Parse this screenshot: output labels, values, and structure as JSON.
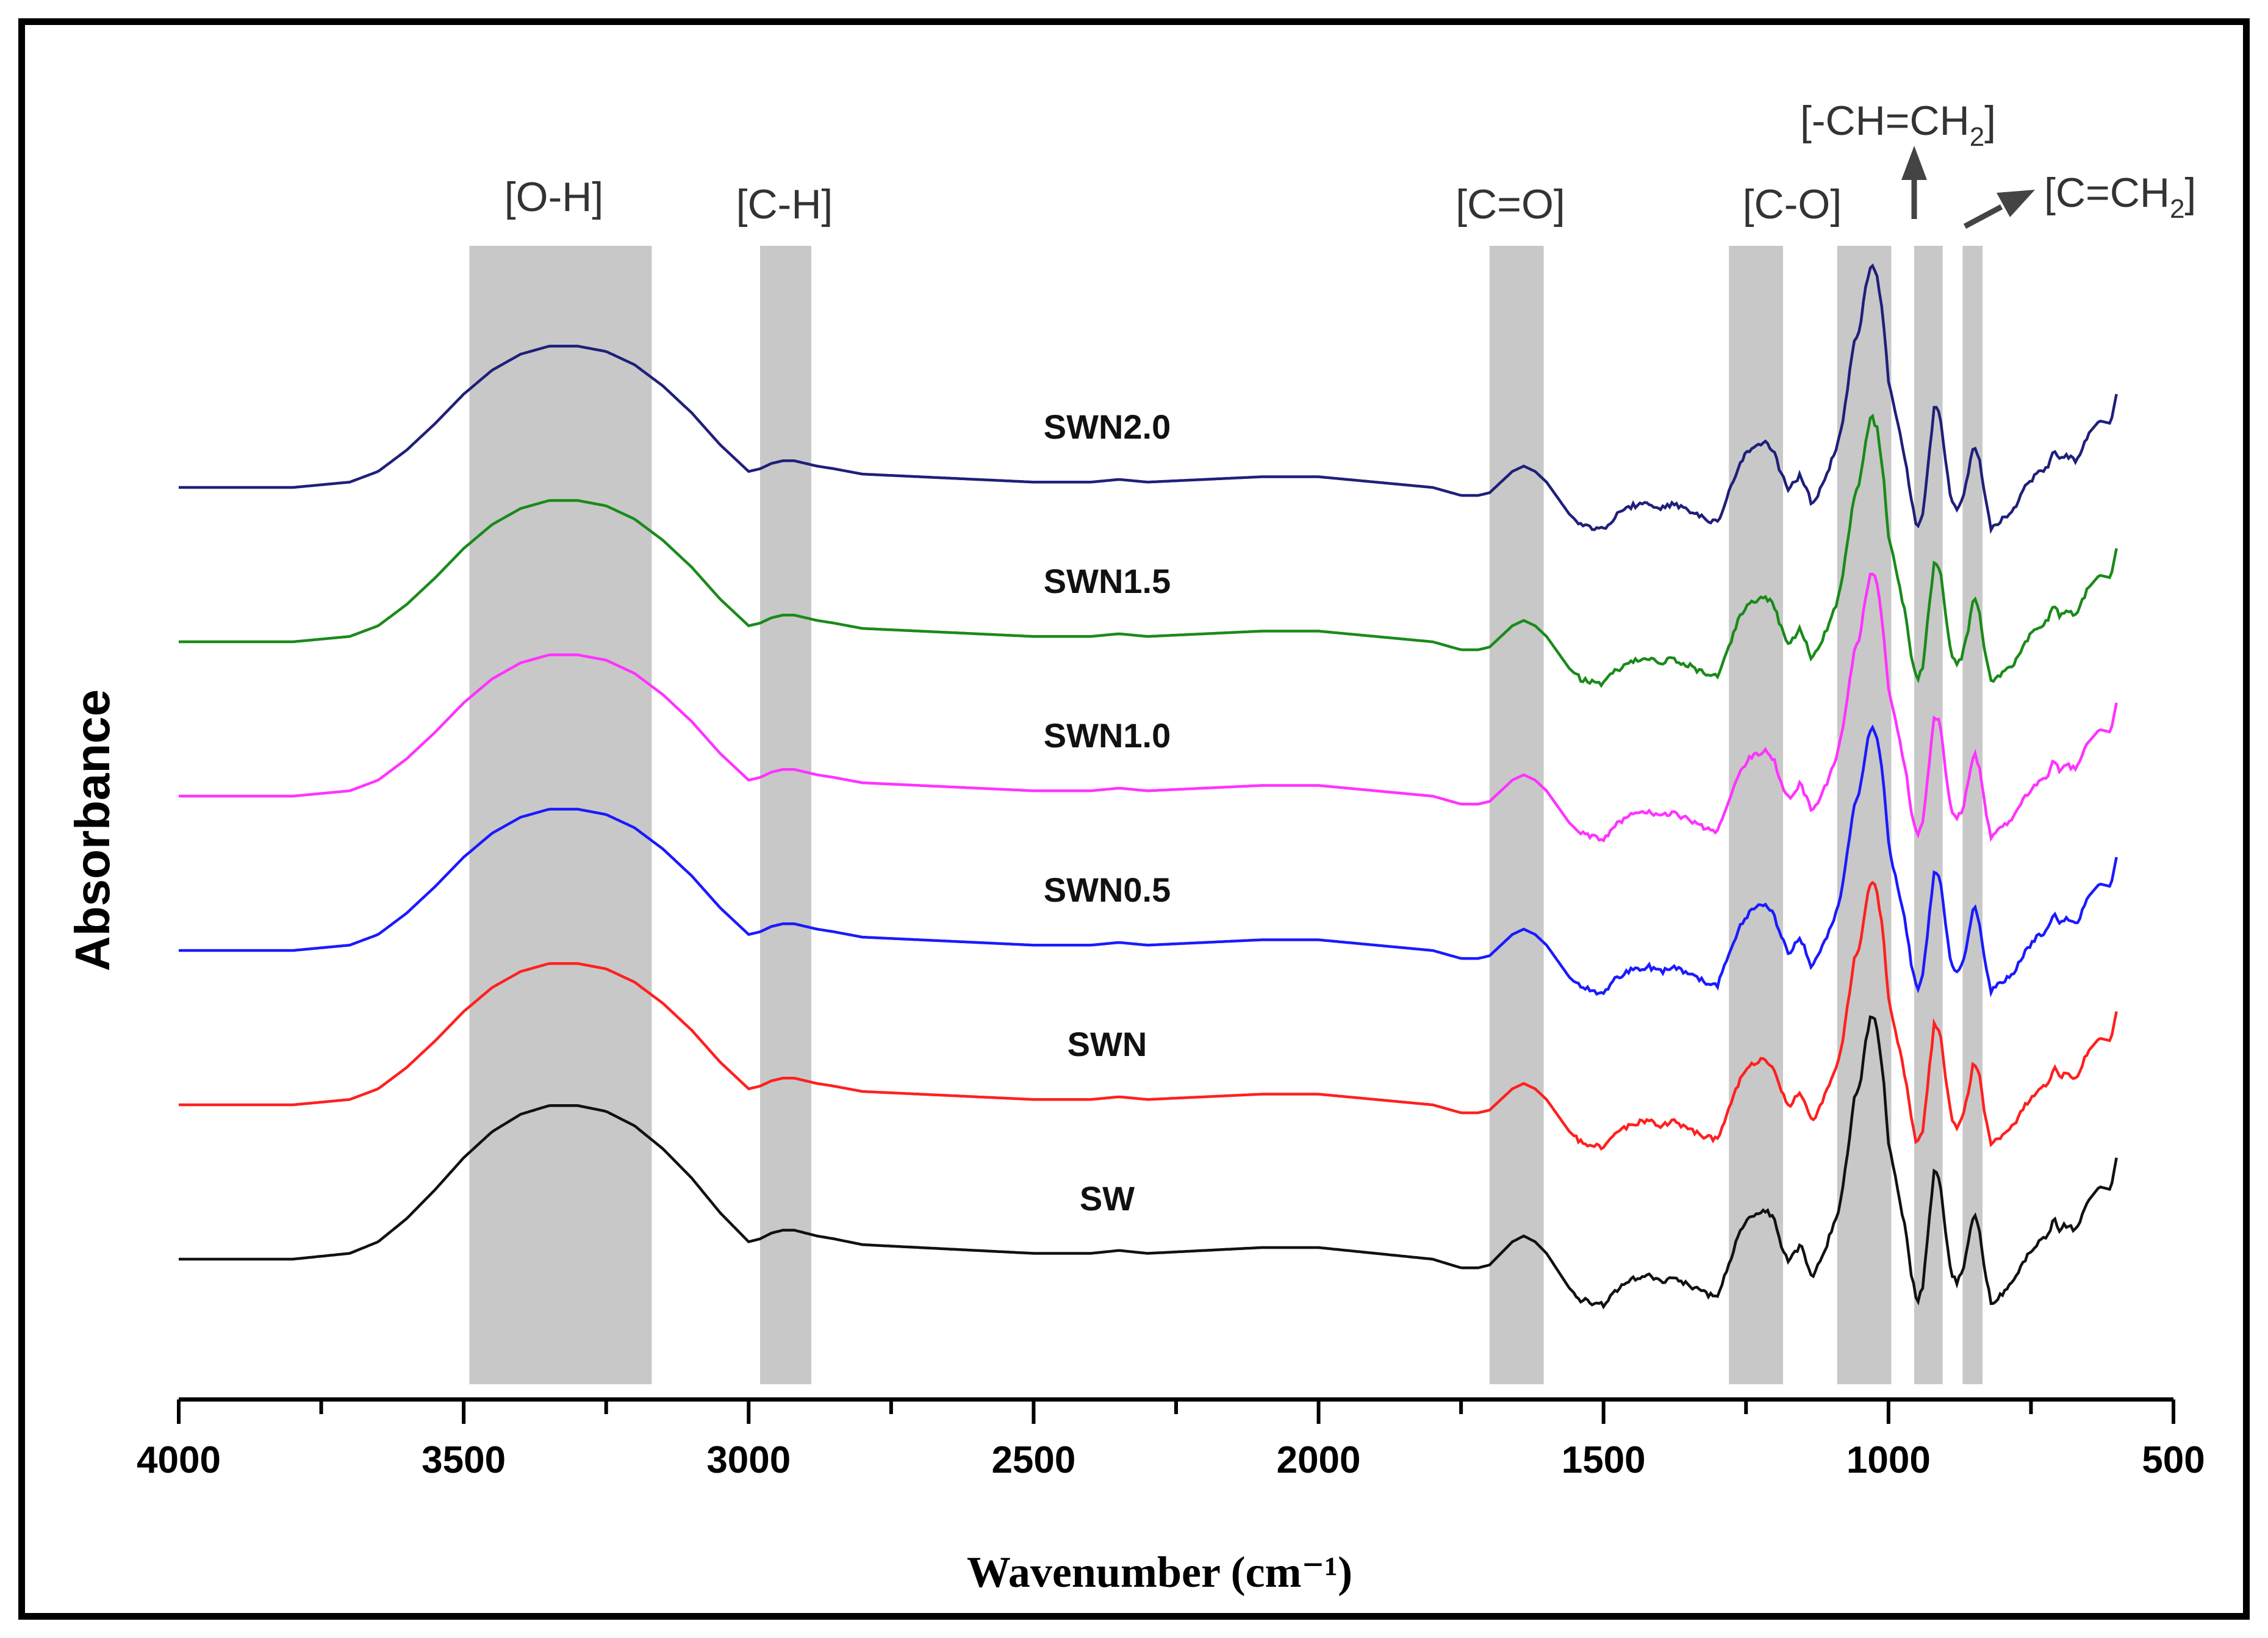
{
  "chart_data": {
    "type": "line",
    "title": "",
    "xlabel": "Wavenumber (cm⁻¹)",
    "ylabel": "Absorbance",
    "xlim": [
      4000,
      500
    ],
    "x_reversed": true,
    "xticks": [
      4000,
      3500,
      3000,
      2500,
      2000,
      1500,
      1000,
      500
    ],
    "grid": false,
    "legend": "none",
    "bands": [
      {
        "name": "O-H",
        "label": "[O-H]",
        "range": [
          3490,
          3170
        ]
      },
      {
        "name": "C-H",
        "label": "[C-H]",
        "range": [
          2980,
          2890
        ]
      },
      {
        "name": "C=O",
        "label": "[C=O]",
        "range": [
          1700,
          1605
        ]
      },
      {
        "name": "C-O",
        "label": "[C-O]",
        "range": [
          1280,
          1185
        ]
      },
      {
        "name": "C-O-2",
        "label": "",
        "range": [
          1090,
          995
        ]
      },
      {
        "name": "CH=CH2",
        "label_main": "[-CH=CH",
        "label_sub": "2",
        "label_end": "]",
        "range": [
          955,
          905
        ]
      },
      {
        "name": "C=CH2",
        "label_main": "[C=CH",
        "label_sub": "2",
        "label_end": "]",
        "range": [
          870,
          835
        ]
      }
    ],
    "series": [
      {
        "name": "SWN2.0",
        "color": "#1f1f7a",
        "offset": 5
      },
      {
        "name": "SWN1.5",
        "color": "#1a8a1a",
        "offset": 4
      },
      {
        "name": "SWN1.0",
        "color": "#ff33ff",
        "offset": 3
      },
      {
        "name": "SWN0.5",
        "color": "#1a1aff",
        "offset": 2
      },
      {
        "name": "SWN",
        "color": "#ff2020",
        "offset": 1
      },
      {
        "name": "SW",
        "color": "#111111",
        "offset": 0
      }
    ],
    "profile": {
      "description": "FTIR absorbance profile shared by all series; values are relative absorbance vs wavenumber (cm-1)",
      "x": [
        4000,
        3900,
        3800,
        3700,
        3650,
        3600,
        3550,
        3500,
        3450,
        3400,
        3350,
        3300,
        3250,
        3200,
        3150,
        3100,
        3050,
        3000,
        2980,
        2960,
        2940,
        2920,
        2900,
        2880,
        2850,
        2800,
        2700,
        2600,
        2500,
        2400,
        2350,
        2300,
        2200,
        2100,
        2050,
        2000,
        1950,
        1900,
        1850,
        1800,
        1750,
        1720,
        1700,
        1680,
        1660,
        1640,
        1620,
        1600,
        1580,
        1560,
        1540,
        1500,
        1480,
        1450,
        1420,
        1400,
        1380,
        1370,
        1350,
        1320,
        1300,
        1280,
        1260,
        1240,
        1230,
        1220,
        1210,
        1200,
        1190,
        1175,
        1165,
        1155,
        1145,
        1135,
        1125,
        1110,
        1100,
        1090,
        1080,
        1070,
        1060,
        1050,
        1040,
        1030,
        1020,
        1010,
        1000,
        990,
        980,
        970,
        960,
        950,
        940,
        930,
        920,
        910,
        900,
        890,
        880,
        870,
        860,
        850,
        840,
        830,
        820,
        800,
        780,
        760,
        740,
        720,
        710,
        700,
        690,
        670,
        650,
        630,
        610,
        600
      ],
      "y": [
        0.0,
        0.0,
        0.0,
        0.02,
        0.06,
        0.14,
        0.24,
        0.35,
        0.44,
        0.5,
        0.53,
        0.53,
        0.51,
        0.46,
        0.38,
        0.28,
        0.16,
        0.06,
        0.07,
        0.09,
        0.1,
        0.1,
        0.09,
        0.08,
        0.07,
        0.05,
        0.04,
        0.03,
        0.02,
        0.02,
        0.03,
        0.02,
        0.03,
        0.04,
        0.04,
        0.04,
        0.03,
        0.02,
        0.01,
        0.0,
        -0.03,
        -0.03,
        -0.02,
        0.02,
        0.06,
        0.08,
        0.06,
        0.02,
        -0.04,
        -0.1,
        -0.14,
        -0.16,
        -0.11,
        -0.07,
        -0.06,
        -0.08,
        -0.06,
        -0.07,
        -0.09,
        -0.12,
        -0.13,
        -0.02,
        0.1,
        0.15,
        0.16,
        0.17,
        0.16,
        0.13,
        0.06,
        -0.01,
        0.02,
        0.05,
        0.0,
        -0.06,
        -0.03,
        0.04,
        0.1,
        0.15,
        0.25,
        0.4,
        0.55,
        0.6,
        0.75,
        0.85,
        0.8,
        0.65,
        0.4,
        0.3,
        0.2,
        0.1,
        -0.05,
        -0.15,
        -0.1,
        0.1,
        0.3,
        0.28,
        0.1,
        -0.05,
        -0.08,
        -0.05,
        0.05,
        0.17,
        0.1,
        -0.05,
        -0.15,
        -0.12,
        -0.08,
        0.0,
        0.05,
        0.08,
        0.14,
        0.1,
        0.12,
        0.1,
        0.2,
        0.25,
        0.24,
        0.35
      ],
      "noise_regions": [
        [
          1550,
          650
        ]
      ]
    }
  },
  "labels": {
    "band_oh": "[O-H]",
    "band_ch": "[C-H]",
    "band_co_double": "[C=O]",
    "band_co": "[C-O]",
    "band_vinyl_main": "[-CH=CH",
    "band_vinyl_sub": "2",
    "band_vinyl_end": "]",
    "band_vinylidene_main": "[C=CH",
    "band_vinylidene_sub": "2",
    "band_vinylidene_end": "]"
  }
}
